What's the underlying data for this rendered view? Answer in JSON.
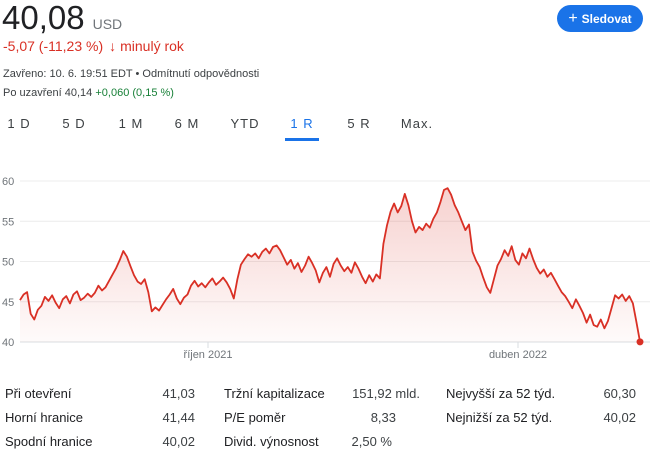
{
  "quote": {
    "price": "40,08",
    "currency": "USD",
    "change": "-5,07 (-11,23 %)",
    "change_arrow": "↓",
    "change_period": "minulý rok",
    "follow_label": "Sledovat",
    "closed_text": "Zavřeno: 10. 6. 19:51 EDT",
    "separator": " • ",
    "disclaimer": "Odmítnutí odpovědnosti",
    "after_hours_label": "Po uzavření 40,14",
    "after_hours_change": "+0,060 (0,15 %)"
  },
  "colors": {
    "accent": "#1a73e8",
    "negative": "#d93025",
    "positive": "#188038"
  },
  "tabs": [
    {
      "label": "1 D"
    },
    {
      "label": "5 D"
    },
    {
      "label": "1 M"
    },
    {
      "label": "6 M"
    },
    {
      "label": "YTD"
    },
    {
      "label": "1 R",
      "active": true
    },
    {
      "label": "5 R"
    },
    {
      "label": "Max."
    }
  ],
  "chart_data": {
    "type": "area",
    "y_ticks": [
      "60",
      "55",
      "50",
      "45",
      "40"
    ],
    "ylim": [
      40,
      60
    ],
    "x_ticks": [
      "říjen 2021",
      "duben 2022"
    ],
    "line_color": "#d93025",
    "grid": true,
    "values": [
      45.2,
      45.9,
      46.2,
      43.5,
      42.8,
      44.0,
      44.5,
      45.6,
      45.1,
      45.8,
      44.9,
      44.2,
      45.3,
      45.7,
      44.8,
      45.9,
      46.3,
      45.2,
      45.5,
      46.0,
      45.6,
      46.1,
      47.0,
      46.4,
      46.8,
      47.6,
      48.4,
      49.2,
      50.2,
      51.3,
      50.6,
      49.4,
      48.3,
      47.5,
      47.2,
      47.8,
      46.2,
      43.8,
      44.3,
      43.9,
      44.6,
      45.3,
      45.9,
      46.6,
      45.4,
      44.7,
      45.5,
      45.9,
      47.0,
      47.6,
      46.9,
      47.3,
      46.8,
      47.4,
      47.9,
      47.1,
      47.5,
      48.0,
      47.4,
      46.6,
      45.4,
      47.8,
      49.6,
      50.3,
      50.9,
      50.6,
      51.0,
      50.4,
      51.2,
      51.6,
      51.0,
      51.8,
      52.0,
      51.4,
      50.5,
      49.6,
      50.2,
      49.1,
      49.8,
      48.7,
      49.5,
      50.6,
      49.8,
      48.9,
      47.4,
      48.6,
      49.3,
      48.1,
      49.7,
      50.4,
      49.5,
      48.8,
      49.3,
      48.6,
      49.9,
      49.1,
      48.1,
      47.3,
      48.3,
      47.5,
      48.4,
      47.9,
      52.2,
      54.5,
      56.2,
      57.2,
      56.1,
      56.9,
      58.4,
      57.0,
      55.0,
      53.6,
      54.3,
      53.9,
      54.7,
      54.2,
      55.3,
      56.1,
      57.4,
      58.9,
      59.1,
      58.3,
      57.0,
      56.1,
      55.0,
      53.9,
      54.6,
      51.2,
      50.1,
      49.3,
      48.0,
      46.8,
      46.1,
      47.8,
      49.5,
      50.3,
      51.4,
      50.7,
      51.9,
      50.2,
      49.6,
      51.0,
      50.4,
      51.6,
      50.3,
      49.2,
      48.5,
      49.0,
      48.1,
      48.6,
      47.8,
      47.0,
      46.2,
      45.7,
      45.0,
      44.2,
      45.3,
      44.5,
      43.6,
      42.4,
      43.4,
      42.1,
      41.9,
      42.8,
      41.7,
      42.6,
      44.2,
      45.8,
      45.4,
      45.9,
      45.1,
      45.7,
      44.8,
      42.5,
      40.02
    ]
  },
  "stats": [
    {
      "label": "Při otevření",
      "value": "41,03"
    },
    {
      "label": "Horní hranice",
      "value": "41,44"
    },
    {
      "label": "Spodní hranice",
      "value": "40,02"
    },
    {
      "label": "Tržní kapitalizace",
      "value": "151,92 mld."
    },
    {
      "label": "P/E poměr",
      "value": "8,33"
    },
    {
      "label": "Divid. výnosnost",
      "value": "2,50 %"
    },
    {
      "label": "Nejvyšší za 52 týd.",
      "value": "60,30"
    },
    {
      "label": "Nejnižší za 52 týd.",
      "value": "40,02"
    }
  ]
}
